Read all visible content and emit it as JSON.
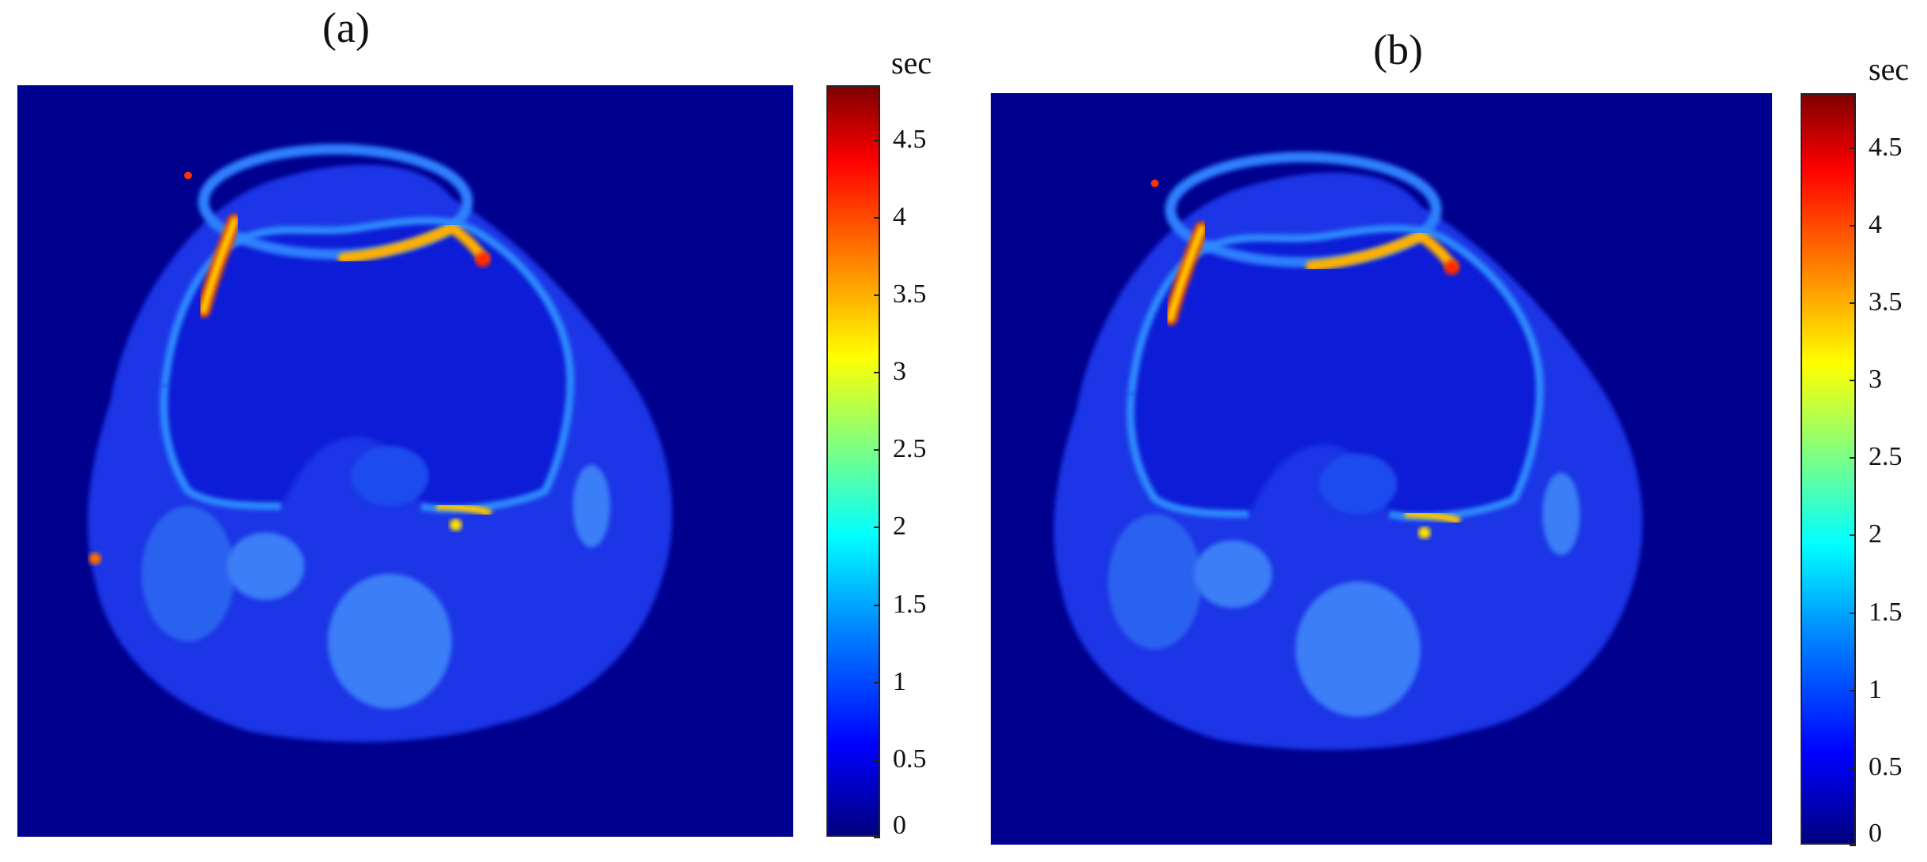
{
  "panels": [
    {
      "label": "(a)",
      "colorbar": {
        "unit": "sec",
        "ticks": [
          "4.5",
          "4",
          "3.5",
          "3",
          "2.5",
          "2",
          "1.5",
          "1",
          "0.5",
          "0"
        ],
        "tick_values": [
          4.5,
          4,
          3.5,
          3,
          2.5,
          2,
          1.5,
          1,
          0.5,
          0
        ],
        "range": [
          0,
          4.85
        ]
      }
    },
    {
      "label": "(b)",
      "colorbar": {
        "unit": "sec",
        "ticks": [
          "4.5",
          "4",
          "3.5",
          "3",
          "2.5",
          "2",
          "1.5",
          "1",
          "0.5",
          "0"
        ],
        "tick_values": [
          4.5,
          4,
          3.5,
          3,
          2.5,
          2,
          1.5,
          1,
          0.5,
          0
        ],
        "range": [
          0,
          4.85
        ]
      }
    }
  ],
  "colormap": "jet",
  "colors": {
    "background": "#00008f",
    "tissue": "#1a3ef0",
    "bright": "#3fa2ff"
  }
}
